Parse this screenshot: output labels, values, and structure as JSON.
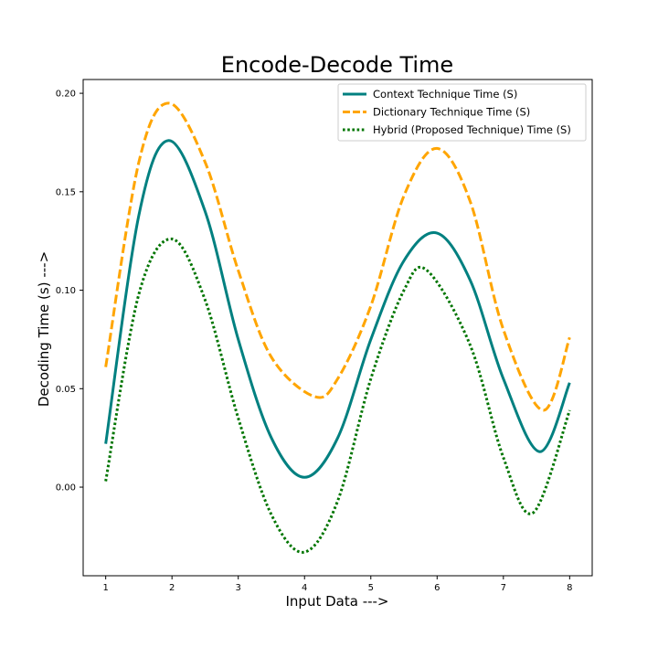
{
  "chart_data": {
    "type": "line",
    "title": "Encode-Decode Time",
    "xlabel": "Input Data --->",
    "ylabel": "Decoding Time (s) --->",
    "xlim": [
      0.66,
      8.34
    ],
    "ylim": [
      -0.045,
      0.207
    ],
    "xticks": [
      1,
      2,
      3,
      4,
      5,
      6,
      7,
      8
    ],
    "yticks": [
      0.0,
      0.05,
      0.1,
      0.15,
      0.2
    ],
    "ytick_labels": [
      "0.00",
      "0.05",
      "0.10",
      "0.15",
      "0.20"
    ],
    "grid": false,
    "legend_position": "top-right",
    "series": [
      {
        "name": "Context Technique Time (S)",
        "color": "#008080",
        "style": "solid",
        "points": [
          [
            1.0,
            0.022
          ],
          [
            1.5,
            0.138
          ],
          [
            1.95,
            0.176
          ],
          [
            2.5,
            0.14
          ],
          [
            3.0,
            0.075
          ],
          [
            3.5,
            0.025
          ],
          [
            4.0,
            0.005
          ],
          [
            4.5,
            0.025
          ],
          [
            5.0,
            0.075
          ],
          [
            5.5,
            0.115
          ],
          [
            6.0,
            0.129
          ],
          [
            6.5,
            0.105
          ],
          [
            7.0,
            0.055
          ],
          [
            7.55,
            0.018
          ],
          [
            8.0,
            0.053
          ]
        ]
      },
      {
        "name": "Dictionary Technique Time (S)",
        "color": "#FFA500",
        "style": "dashed",
        "points": [
          [
            1.0,
            0.061
          ],
          [
            1.5,
            0.165
          ],
          [
            1.95,
            0.195
          ],
          [
            2.5,
            0.165
          ],
          [
            3.0,
            0.11
          ],
          [
            3.5,
            0.066
          ],
          [
            4.15,
            0.046
          ],
          [
            4.5,
            0.055
          ],
          [
            5.0,
            0.092
          ],
          [
            5.5,
            0.148
          ],
          [
            6.0,
            0.172
          ],
          [
            6.5,
            0.145
          ],
          [
            7.0,
            0.08
          ],
          [
            7.6,
            0.039
          ],
          [
            8.0,
            0.076
          ]
        ]
      },
      {
        "name": "Hybrid (Proposed Technique) Time (S)",
        "color": "#007500",
        "style": "dotted",
        "points": [
          [
            1.0,
            0.003
          ],
          [
            1.5,
            0.098
          ],
          [
            2.0,
            0.126
          ],
          [
            2.5,
            0.095
          ],
          [
            3.0,
            0.035
          ],
          [
            3.5,
            -0.014
          ],
          [
            4.0,
            -0.033
          ],
          [
            4.5,
            -0.007
          ],
          [
            5.0,
            0.055
          ],
          [
            5.5,
            0.1
          ],
          [
            5.85,
            0.11
          ],
          [
            6.5,
            0.072
          ],
          [
            7.0,
            0.015
          ],
          [
            7.45,
            -0.013
          ],
          [
            8.0,
            0.039
          ]
        ]
      }
    ]
  }
}
